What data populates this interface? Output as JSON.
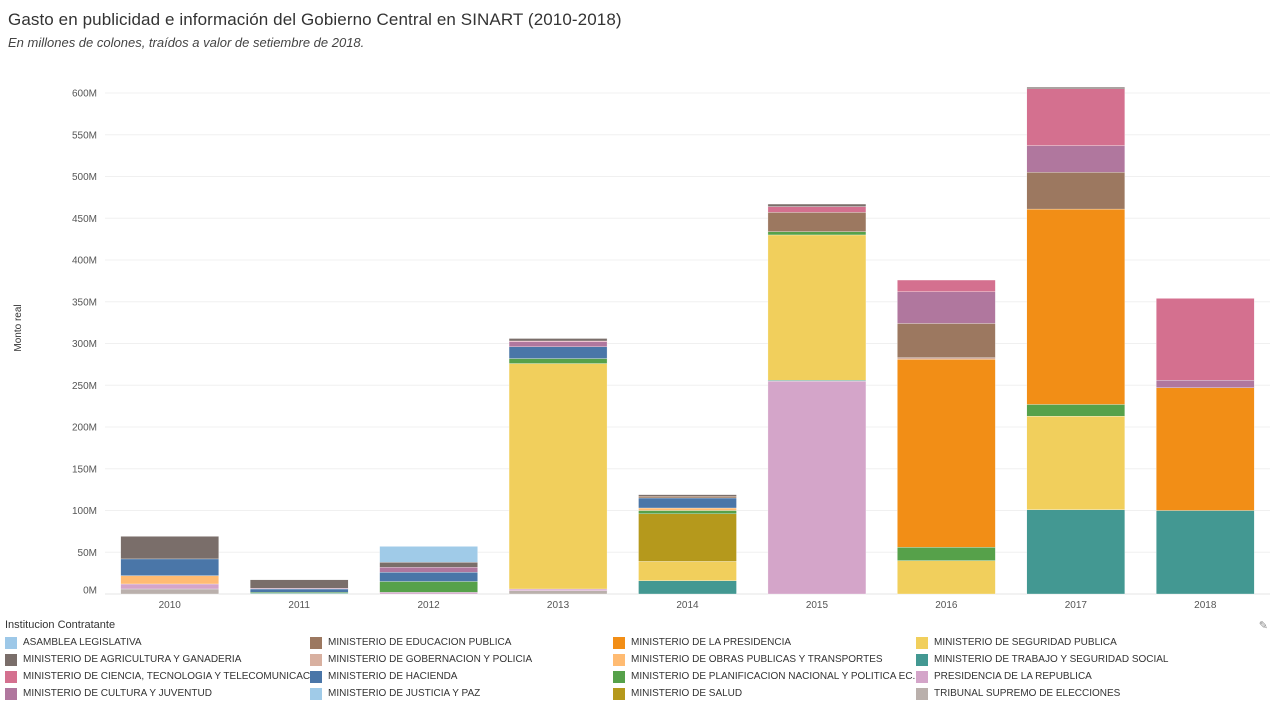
{
  "header": {
    "title": "Gasto en publicidad e información del Gobierno Central en SINART (2010-2018)",
    "subtitle": "En millones de colones, traídos a valor de setiembre de 2018."
  },
  "legend": {
    "title": "Institucion Contratante",
    "edit_icon": "pencil-icon",
    "items": [
      {
        "label": "ASAMBLEA LEGISLATIVA",
        "color": "#9dc8e8"
      },
      {
        "label": "MINISTERIO DE AGRICULTURA Y GANADERIA",
        "color": "#7a6e6a"
      },
      {
        "label": "MINISTERIO DE CIENCIA, TECNOLOGIA Y TELECOMUNICAC..",
        "color": "#d4708f"
      },
      {
        "label": "MINISTERIO DE CULTURA Y JUVENTUD",
        "color": "#b0779e"
      },
      {
        "label": "MINISTERIO DE EDUCACION PUBLICA",
        "color": "#9c7860"
      },
      {
        "label": "MINISTERIO DE GOBERNACION Y POLICIA",
        "color": "#d8b0a0"
      },
      {
        "label": "MINISTERIO DE HACIENDA",
        "color": "#4a76a8"
      },
      {
        "label": "MINISTERIO DE JUSTICIA Y PAZ",
        "color": "#a0cbe8"
      },
      {
        "label": "MINISTERIO DE LA PRESIDENCIA",
        "color": "#f28e16"
      },
      {
        "label": "MINISTERIO DE OBRAS PUBLICAS Y TRANSPORTES",
        "color": "#ffbb72"
      },
      {
        "label": "MINISTERIO DE PLANIFICACION NACIONAL Y POLITICA EC..",
        "color": "#56a14a"
      },
      {
        "label": "MINISTERIO DE SALUD",
        "color": "#b5991c"
      },
      {
        "label": "MINISTERIO DE SEGURIDAD PUBLICA",
        "color": "#f1cf5c"
      },
      {
        "label": "MINISTERIO DE TRABAJO Y SEGURIDAD SOCIAL",
        "color": "#439892"
      },
      {
        "label": "PRESIDENCIA DE LA REPUBLICA",
        "color": "#d4a5c9"
      },
      {
        "label": "TRIBUNAL SUPREMO DE ELECCIONES",
        "color": "#bab0ac"
      }
    ]
  },
  "chart_data": {
    "type": "bar",
    "stacked": true,
    "title": "Gasto en publicidad e información del Gobierno Central en SINART (2010-2018)",
    "subtitle": "En millones de colones, traídos a valor de setiembre de 2018.",
    "xlabel": "",
    "ylabel": "Monto real",
    "ylim": [
      0,
      620
    ],
    "yticks": [
      0,
      50,
      100,
      150,
      200,
      250,
      300,
      350,
      400,
      450,
      500,
      550,
      600
    ],
    "ytick_labels": [
      "0M",
      "50M",
      "100M",
      "150M",
      "200M",
      "250M",
      "300M",
      "350M",
      "400M",
      "450M",
      "500M",
      "550M",
      "600M"
    ],
    "grid": true,
    "legend_position": "bottom",
    "categories": [
      "2010",
      "2011",
      "2012",
      "2013",
      "2014",
      "2015",
      "2016",
      "2017",
      "2018"
    ],
    "series": [
      {
        "name": "TRIBUNAL SUPREMO DE ELECCIONES",
        "values": [
          6,
          0,
          0,
          4,
          0,
          0,
          0,
          0,
          0
        ]
      },
      {
        "name": "PRESIDENCIA DE LA REPUBLICA",
        "values": [
          6,
          0,
          2,
          2,
          0,
          255,
          0,
          0,
          0
        ]
      },
      {
        "name": "MINISTERIO DE TRABAJO Y SEGURIDAD SOCIAL",
        "values": [
          0,
          1,
          0,
          0,
          16,
          1,
          0,
          101,
          100
        ]
      },
      {
        "name": "MINISTERIO DE SEGURIDAD PUBLICA",
        "values": [
          0,
          0,
          0,
          270,
          23,
          174,
          40,
          112,
          0
        ]
      },
      {
        "name": "MINISTERIO DE SALUD",
        "values": [
          0,
          0,
          0,
          0,
          57,
          0,
          0,
          0,
          0
        ]
      },
      {
        "name": "MINISTERIO DE PLANIFICACION NACIONAL Y POLITICA EC..",
        "values": [
          0,
          1,
          13,
          6,
          4,
          4,
          16,
          14,
          0
        ]
      },
      {
        "name": "MINISTERIO DE OBRAS PUBLICAS Y TRANSPORTES",
        "values": [
          10,
          0,
          0,
          0,
          3,
          0,
          0,
          0,
          0
        ]
      },
      {
        "name": "MINISTERIO DE LA PRESIDENCIA",
        "values": [
          0,
          0,
          0,
          0,
          0,
          0,
          225,
          234,
          147
        ]
      },
      {
        "name": "MINISTERIO DE HACIENDA",
        "values": [
          20,
          4,
          11,
          14,
          12,
          0,
          0,
          0,
          0
        ]
      },
      {
        "name": "MINISTERIO DE GOBERNACION Y POLICIA",
        "values": [
          0,
          0,
          0,
          0,
          0,
          0,
          2,
          0,
          0
        ]
      },
      {
        "name": "MINISTERIO DE EDUCACION PUBLICA",
        "values": [
          0,
          0,
          0,
          0,
          2,
          23,
          41,
          44,
          0
        ]
      },
      {
        "name": "MINISTERIO DE CULTURA Y JUVENTUD",
        "values": [
          0,
          1,
          6,
          6,
          0,
          0,
          38,
          32,
          9
        ]
      },
      {
        "name": "MINISTERIO DE CIENCIA, TECNOLOGIA Y TELECOMUNICAC..",
        "values": [
          0,
          0,
          0,
          1,
          0,
          7,
          14,
          68,
          98
        ]
      },
      {
        "name": "MINISTERIO DE AGRICULTURA Y GANADERIA",
        "values": [
          27,
          10,
          6,
          3,
          2,
          3,
          0,
          2,
          0
        ]
      },
      {
        "name": "MINISTERIO DE JUSTICIA Y PAZ",
        "values": [
          0,
          0,
          19,
          0,
          0,
          0,
          0,
          0,
          0
        ]
      },
      {
        "name": "ASAMBLEA LEGISLATIVA",
        "values": [
          0,
          0,
          0,
          0,
          0,
          0,
          0,
          0,
          0
        ]
      }
    ]
  }
}
